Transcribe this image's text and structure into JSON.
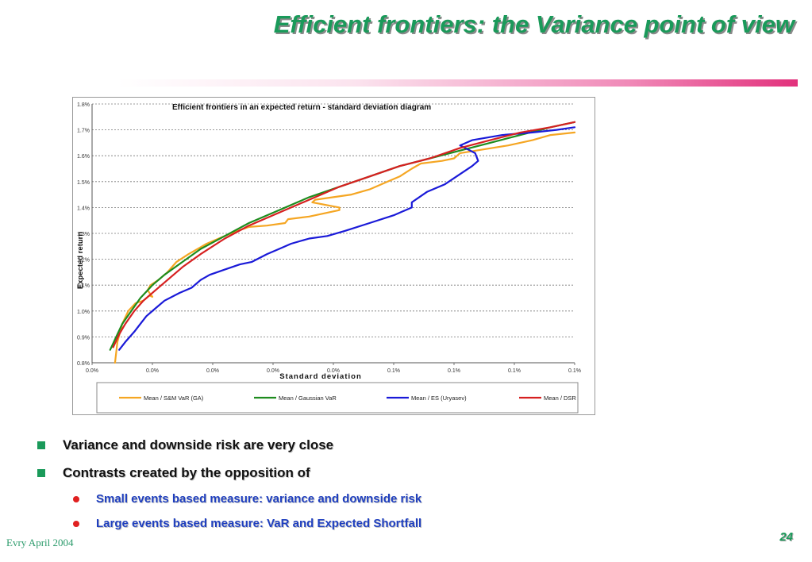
{
  "slide": {
    "title": "Efficient frontiers: the Variance point of view",
    "footer": "Evry April 2004",
    "page_number": "24",
    "bullets": [
      {
        "level": 1,
        "text": "Variance and downside risk are very close"
      },
      {
        "level": 1,
        "text": "Contrasts created by the opposition of"
      },
      {
        "level": 2,
        "text": "Small events based measure: variance and downside risk"
      },
      {
        "level": 2,
        "text": "Large events based measure: VaR and Expected Shortfall"
      }
    ]
  },
  "colors": {
    "title": "#1a9a5a",
    "bullet_square": "#1a9a5a",
    "bullet_dot": "#e02020",
    "sub_bullet_text": "#1f3fbf"
  },
  "chart_data": {
    "type": "line",
    "title": "Efficient frontiers in an expected return - standard deviation diagram",
    "xlabel": "Standard deviation",
    "ylabel": "Expected return",
    "x_tick_labels": [
      "0.0%",
      "0.0%",
      "0.0%",
      "0.0%",
      "0.0%",
      "0.1%",
      "0.1%",
      "0.1%",
      "0.1%"
    ],
    "y_tick_labels": [
      "0.8%",
      "0.9%",
      "1.0%",
      "1.1%",
      "1.2%",
      "1.3%",
      "1.4%",
      "1.5%",
      "1.6%",
      "1.7%",
      "1.8%"
    ],
    "xlim": [
      0.0,
      8.0
    ],
    "ylim": [
      0.8,
      1.8
    ],
    "grid": "horizontal dotted",
    "legend_position": "bottom",
    "series": [
      {
        "name": "Mean / S&M VaR (GA)",
        "color": "#f5a623",
        "points": [
          [
            0.38,
            0.8
          ],
          [
            0.42,
            0.88
          ],
          [
            0.5,
            0.95
          ],
          [
            0.6,
            1.0
          ],
          [
            0.72,
            1.03
          ],
          [
            0.85,
            1.04
          ],
          [
            0.95,
            1.06
          ],
          [
            1.0,
            1.055
          ],
          [
            0.92,
            1.08
          ],
          [
            0.97,
            1.1
          ],
          [
            1.1,
            1.12
          ],
          [
            1.25,
            1.15
          ],
          [
            1.4,
            1.19
          ],
          [
            1.6,
            1.22
          ],
          [
            1.9,
            1.26
          ],
          [
            2.3,
            1.3
          ],
          [
            2.6,
            1.325
          ],
          [
            2.9,
            1.33
          ],
          [
            3.2,
            1.34
          ],
          [
            3.25,
            1.355
          ],
          [
            3.6,
            1.365
          ],
          [
            3.9,
            1.38
          ],
          [
            4.1,
            1.39
          ],
          [
            4.1,
            1.4
          ],
          [
            3.65,
            1.42
          ],
          [
            3.7,
            1.43
          ],
          [
            4.0,
            1.44
          ],
          [
            4.3,
            1.45
          ],
          [
            4.6,
            1.47
          ],
          [
            4.9,
            1.5
          ],
          [
            5.1,
            1.52
          ],
          [
            5.3,
            1.55
          ],
          [
            5.45,
            1.57
          ],
          [
            5.8,
            1.58
          ],
          [
            6.0,
            1.59
          ],
          [
            6.1,
            1.61
          ],
          [
            6.5,
            1.625
          ],
          [
            6.9,
            1.64
          ],
          [
            7.3,
            1.66
          ],
          [
            7.6,
            1.68
          ],
          [
            8.0,
            1.69
          ]
        ]
      },
      {
        "name": "Mean / Gaussian VaR",
        "color": "#1e8c1e",
        "points": [
          [
            0.3,
            0.85
          ],
          [
            0.4,
            0.9
          ],
          [
            0.5,
            0.95
          ],
          [
            0.65,
            1.0
          ],
          [
            0.8,
            1.05
          ],
          [
            1.0,
            1.1
          ],
          [
            1.2,
            1.14
          ],
          [
            1.5,
            1.19
          ],
          [
            1.8,
            1.24
          ],
          [
            2.2,
            1.29
          ],
          [
            2.6,
            1.34
          ],
          [
            3.1,
            1.39
          ],
          [
            3.6,
            1.44
          ],
          [
            4.1,
            1.48
          ],
          [
            4.6,
            1.52
          ],
          [
            5.1,
            1.56
          ],
          [
            5.6,
            1.59
          ],
          [
            6.1,
            1.62
          ],
          [
            6.6,
            1.65
          ],
          [
            7.1,
            1.68
          ],
          [
            7.6,
            1.71
          ],
          [
            8.0,
            1.73
          ]
        ]
      },
      {
        "name": "Mean / ES (Uryasev)",
        "color": "#1a1ad8",
        "points": [
          [
            0.45,
            0.85
          ],
          [
            0.55,
            0.88
          ],
          [
            0.7,
            0.92
          ],
          [
            0.8,
            0.95
          ],
          [
            0.9,
            0.98
          ],
          [
            1.05,
            1.01
          ],
          [
            1.2,
            1.04
          ],
          [
            1.45,
            1.07
          ],
          [
            1.65,
            1.09
          ],
          [
            1.8,
            1.12
          ],
          [
            1.95,
            1.14
          ],
          [
            2.2,
            1.16
          ],
          [
            2.45,
            1.18
          ],
          [
            2.65,
            1.19
          ],
          [
            2.9,
            1.22
          ],
          [
            3.1,
            1.24
          ],
          [
            3.3,
            1.26
          ],
          [
            3.6,
            1.28
          ],
          [
            3.9,
            1.29
          ],
          [
            4.2,
            1.31
          ],
          [
            4.6,
            1.34
          ],
          [
            5.0,
            1.37
          ],
          [
            5.3,
            1.4
          ],
          [
            5.3,
            1.42
          ],
          [
            5.55,
            1.46
          ],
          [
            5.85,
            1.49
          ],
          [
            6.3,
            1.56
          ],
          [
            6.4,
            1.58
          ],
          [
            6.35,
            1.61
          ],
          [
            6.1,
            1.64
          ],
          [
            6.3,
            1.66
          ],
          [
            6.8,
            1.68
          ],
          [
            7.3,
            1.69
          ],
          [
            7.7,
            1.7
          ],
          [
            8.0,
            1.71
          ]
        ]
      },
      {
        "name": "Mean / DSR",
        "color": "#d62020",
        "points": [
          [
            0.35,
            0.86
          ],
          [
            0.45,
            0.91
          ],
          [
            0.55,
            0.95
          ],
          [
            0.7,
            1.0
          ],
          [
            0.85,
            1.04
          ],
          [
            1.05,
            1.08
          ],
          [
            1.25,
            1.12
          ],
          [
            1.5,
            1.17
          ],
          [
            1.8,
            1.22
          ],
          [
            2.2,
            1.28
          ],
          [
            2.6,
            1.33
          ],
          [
            3.1,
            1.38
          ],
          [
            3.6,
            1.43
          ],
          [
            4.1,
            1.48
          ],
          [
            4.6,
            1.52
          ],
          [
            5.1,
            1.56
          ],
          [
            5.6,
            1.59
          ],
          [
            6.1,
            1.63
          ],
          [
            6.6,
            1.66
          ],
          [
            7.1,
            1.69
          ],
          [
            7.6,
            1.71
          ],
          [
            8.0,
            1.73
          ]
        ]
      }
    ]
  }
}
